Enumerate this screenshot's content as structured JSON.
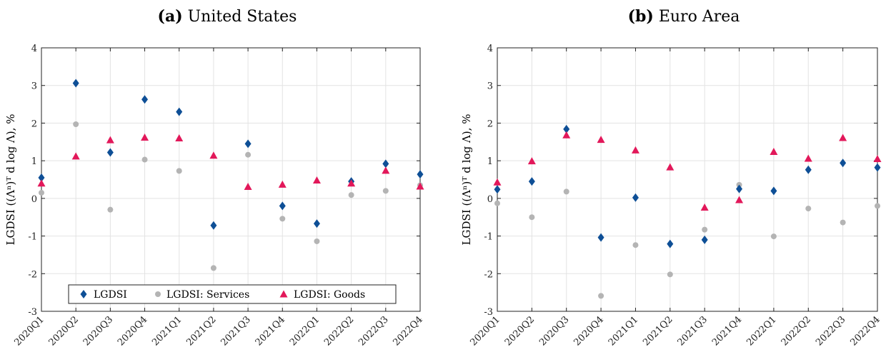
{
  "colors": {
    "lgdsi": "#0e4f96",
    "services": "#b4b4b4",
    "goods": "#e2185a"
  },
  "ylabel": "LGDSI ((Λⁿ)ᵀ d log Λ), %",
  "legend": {
    "lgdsi": "LGDSI",
    "services": "LGDSI: Services",
    "goods": "LGDSI: Goods"
  },
  "chart_data": [
    {
      "type": "scatter",
      "title_prefix": "(a)",
      "title": "United States",
      "ylim": [
        -3,
        4
      ],
      "yticks": [
        "-3",
        "-2",
        "-1",
        "0",
        "1",
        "2",
        "3",
        "4"
      ],
      "grid": true,
      "legend_position": "bottom",
      "categories": [
        "2020Q1",
        "2020Q2",
        "2020Q3",
        "2020Q4",
        "2021Q1",
        "2021Q2",
        "2021Q3",
        "2021Q4",
        "2022Q1",
        "2022Q2",
        "2022Q3",
        "2022Q4"
      ],
      "series": [
        {
          "name": "LGDSI",
          "values": [
            0.55,
            3.06,
            1.22,
            2.63,
            2.3,
            -0.72,
            1.45,
            -0.2,
            -0.67,
            0.45,
            0.92,
            0.64
          ]
        },
        {
          "name": "LGDSI: Services",
          "values": [
            0.15,
            1.97,
            -0.3,
            1.03,
            0.73,
            -1.85,
            1.16,
            -0.54,
            -1.14,
            0.09,
            0.2,
            0.35
          ]
        },
        {
          "name": "LGDSI: Goods",
          "values": [
            0.4,
            1.12,
            1.55,
            1.62,
            1.6,
            1.14,
            0.31,
            0.37,
            0.48,
            0.4,
            0.74,
            0.32
          ]
        }
      ]
    },
    {
      "type": "scatter",
      "title_prefix": "(b)",
      "title": "Euro Area",
      "ylim": [
        -3,
        4
      ],
      "yticks": [
        "-3",
        "-2",
        "-1",
        "0",
        "1",
        "2",
        "3",
        "4"
      ],
      "grid": true,
      "categories": [
        "2020Q1",
        "2020Q2",
        "2020Q3",
        "2020Q4",
        "2021Q1",
        "2021Q2",
        "2021Q3",
        "2021Q4",
        "2022Q1",
        "2022Q2",
        "2022Q3",
        "2022Q4"
      ],
      "series": [
        {
          "name": "LGDSI",
          "values": [
            0.24,
            0.45,
            1.84,
            -1.04,
            0.02,
            -1.21,
            -1.1,
            0.25,
            0.2,
            0.76,
            0.94,
            0.82
          ]
        },
        {
          "name": "LGDSI: Services",
          "values": [
            -0.13,
            -0.5,
            0.18,
            -2.59,
            -1.24,
            -2.02,
            -0.83,
            0.36,
            -1.01,
            -0.27,
            -0.64,
            -0.2
          ]
        },
        {
          "name": "LGDSI: Goods",
          "values": [
            0.43,
            0.99,
            1.68,
            1.56,
            1.28,
            0.83,
            -0.24,
            -0.04,
            1.24,
            1.06,
            1.61,
            1.05
          ]
        }
      ]
    }
  ]
}
